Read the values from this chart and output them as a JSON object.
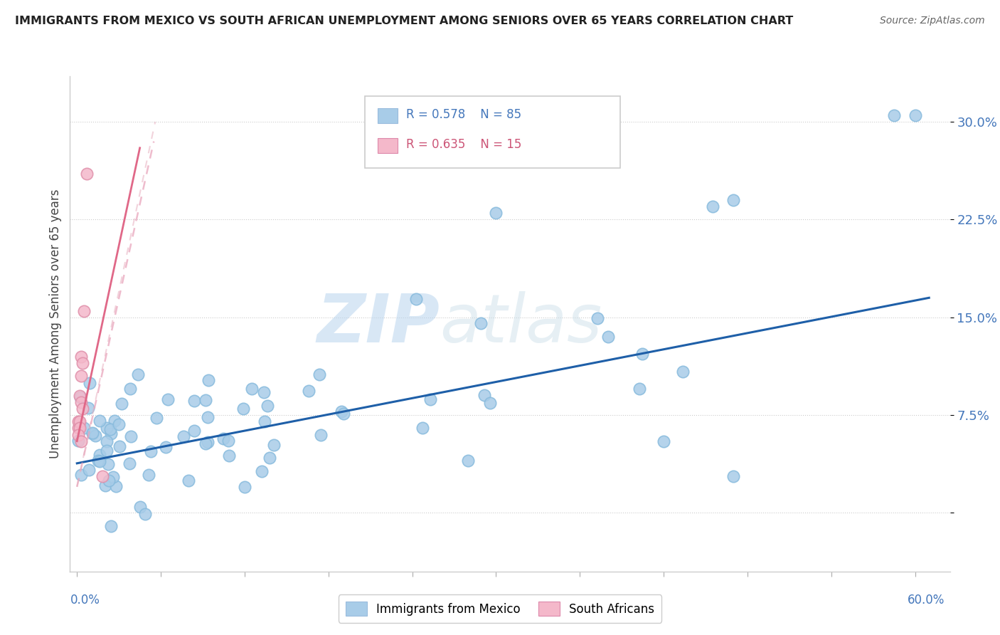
{
  "title": "IMMIGRANTS FROM MEXICO VS SOUTH AFRICAN UNEMPLOYMENT AMONG SENIORS OVER 65 YEARS CORRELATION CHART",
  "source": "Source: ZipAtlas.com",
  "ylabel": "Unemployment Among Seniors over 65 years",
  "yticks": [
    0.0,
    0.075,
    0.15,
    0.225,
    0.3
  ],
  "ytick_labels": [
    "",
    "7.5%",
    "15.0%",
    "22.5%",
    "30.0%"
  ],
  "xlim": [
    -0.005,
    0.625
  ],
  "ylim": [
    -0.045,
    0.335
  ],
  "blue_R": 0.578,
  "blue_N": 85,
  "pink_R": 0.635,
  "pink_N": 15,
  "blue_color": "#a8cce8",
  "pink_color": "#f4b8ca",
  "blue_line_color": "#1e5fa8",
  "pink_line_color": "#e87898",
  "watermark_zip": "ZIP",
  "watermark_atlas": "atlas",
  "legend_label_blue": "Immigrants from Mexico",
  "legend_label_pink": "South Africans",
  "blue_trend_x0": 0.0,
  "blue_trend_x1": 0.61,
  "blue_trend_y0": 0.038,
  "blue_trend_y1": 0.165,
  "pink_trend_x0": 0.0,
  "pink_trend_x1": 0.055,
  "pink_trend_y0": 0.02,
  "pink_trend_y1": 0.285
}
